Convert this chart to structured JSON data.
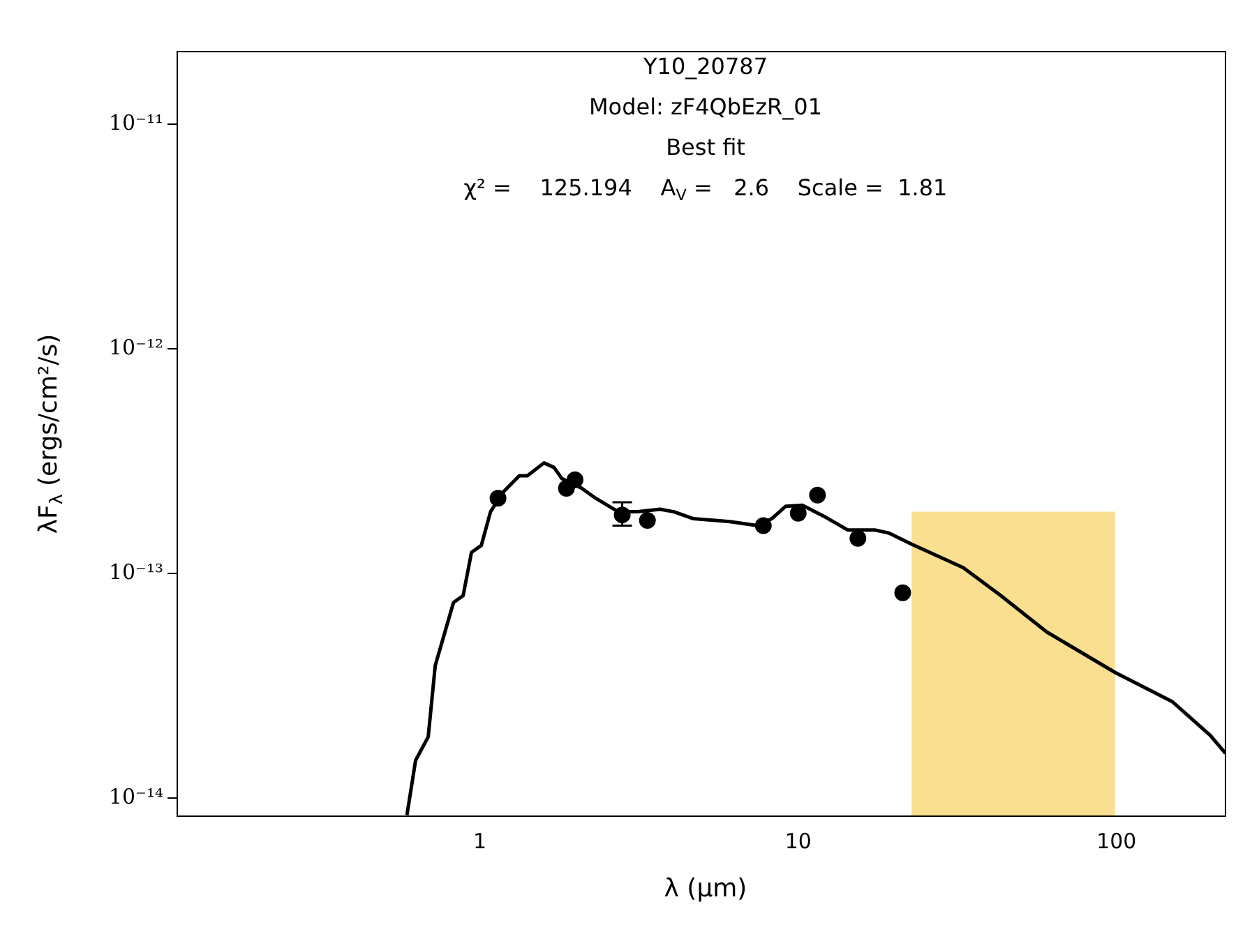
{
  "chart_data": {
    "type": "line",
    "title": "Y10_20787",
    "subtitle": "Model: zF4QbEzR_01",
    "annotations": [
      "Best fit",
      "χ² =    125.194    A$_{V}$ =   2.6    Scale =  1.81"
    ],
    "xlabel": "λ (μm)",
    "ylabel": "λF$_{λ}$ (ergs/cm²/s)",
    "log": "xy",
    "grid": false,
    "legend": false,
    "xlim": [
      0.112,
      220
    ],
    "ylim": [
      8.3e-15,
      2.1e-11
    ],
    "xticks": [
      1,
      10,
      100
    ],
    "yticks": [
      {
        "value": 1e-14,
        "label": "10⁻¹⁴"
      },
      {
        "value": 1e-13,
        "label": "10⁻¹³"
      },
      {
        "value": 1e-12,
        "label": "10⁻¹²"
      },
      {
        "value": 1e-11,
        "label": "10⁻¹¹"
      }
    ],
    "series": [
      {
        "color": "#000000",
        "marker": "none",
        "line_style": "solid",
        "x": [
          0.59,
          0.628,
          0.688,
          0.724,
          0.826,
          0.886,
          0.941,
          1.01,
          1.08,
          1.18,
          1.33,
          1.41,
          1.59,
          1.71,
          1.81,
          2.09,
          2.31,
          2.72,
          3.13,
          3.68,
          4.07,
          4.69,
          6.1,
          7.46,
          8.26,
          9.14,
          10.3,
          12.0,
          14.3,
          17.4,
          19.3,
          22.7,
          33.0,
          43.3,
          60.4,
          99.0,
          150,
          197,
          220
        ],
        "values": [
          8.4e-15,
          1.47e-14,
          1.87e-14,
          3.89e-14,
          7.41e-14,
          7.96e-14,
          1.24e-13,
          1.33e-13,
          1.88e-13,
          2.29e-13,
          2.72e-13,
          2.72e-13,
          3.1e-13,
          2.96e-13,
          2.64e-13,
          2.39e-13,
          2.16e-13,
          1.88e-13,
          1.88e-13,
          1.93e-13,
          1.88e-13,
          1.75e-13,
          1.7e-13,
          1.63e-13,
          1.75e-13,
          1.99e-13,
          2.01e-13,
          1.8e-13,
          1.56e-13,
          1.56e-13,
          1.51e-13,
          1.35e-13,
          1.06e-13,
          7.96e-14,
          5.48e-14,
          3.62e-14,
          2.68e-14,
          1.9e-14,
          1.58e-14
        ]
      },
      {
        "type": "scatter",
        "color": "#000000",
        "marker": "circle",
        "x": [
          1.14,
          1.87,
          1.99,
          2.8,
          3.36,
          7.77,
          10.0,
          11.5,
          15.4,
          21.3
        ],
        "values": [
          2.16e-13,
          2.39e-13,
          2.61e-13,
          1.82e-13,
          1.72e-13,
          1.63e-13,
          1.85e-13,
          2.23e-13,
          1.43e-13,
          8.2e-14
        ],
        "errors": [
          null,
          null,
          null,
          [
            1.63e-13,
            2.07e-13
          ],
          null,
          null,
          null,
          null,
          null,
          null
        ]
      },
      {
        "type": "area",
        "color": "#f9d97c",
        "x": [
          22.7,
          99.0
        ],
        "values": [
          1.88e-13,
          1.88e-13
        ]
      }
    ]
  }
}
